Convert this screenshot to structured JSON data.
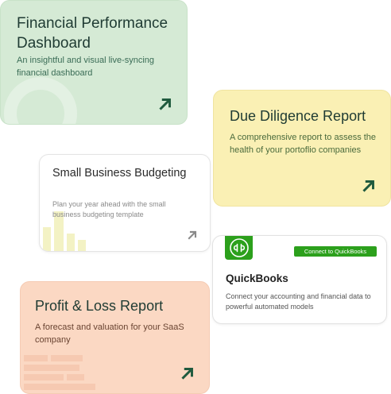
{
  "cards": {
    "financial_performance": {
      "title": "Financial Performance Dashboard",
      "description": "An insightful and visual live-syncing financial dashboard",
      "arrow_icon": "arrow-up-right-icon",
      "bg_color": "#d5ead5",
      "arrow_color": "#1f5a3e"
    },
    "due_diligence": {
      "title": "Due Diligence Report",
      "description": "A comprehensive report to assess the health of your portoflio companies",
      "arrow_icon": "arrow-up-right-icon",
      "bg_color": "#faf0b4",
      "arrow_color": "#1f5a3e"
    },
    "small_business": {
      "title": "Small Business Budgeting",
      "description": "Plan your year ahead with the small business budgeting template",
      "arrow_icon": "arrow-up-right-icon",
      "bg_color": "#ffffff",
      "arrow_color": "#8a8a8a"
    },
    "profit_loss": {
      "title": "Profit & Loss Report",
      "description": "A forecast and valuation for your SaaS company",
      "arrow_icon": "arrow-up-right-icon",
      "bg_color": "#fbd8c3",
      "arrow_color": "#1f5a3e"
    },
    "quickbooks": {
      "title": "QuickBooks",
      "description": "Connect your accounting and financial data to powerful automated models",
      "connect_button_label": "Connect to QuickBooks",
      "logo_icon": "quickbooks-logo-icon",
      "brand_color": "#2ca01c"
    }
  }
}
